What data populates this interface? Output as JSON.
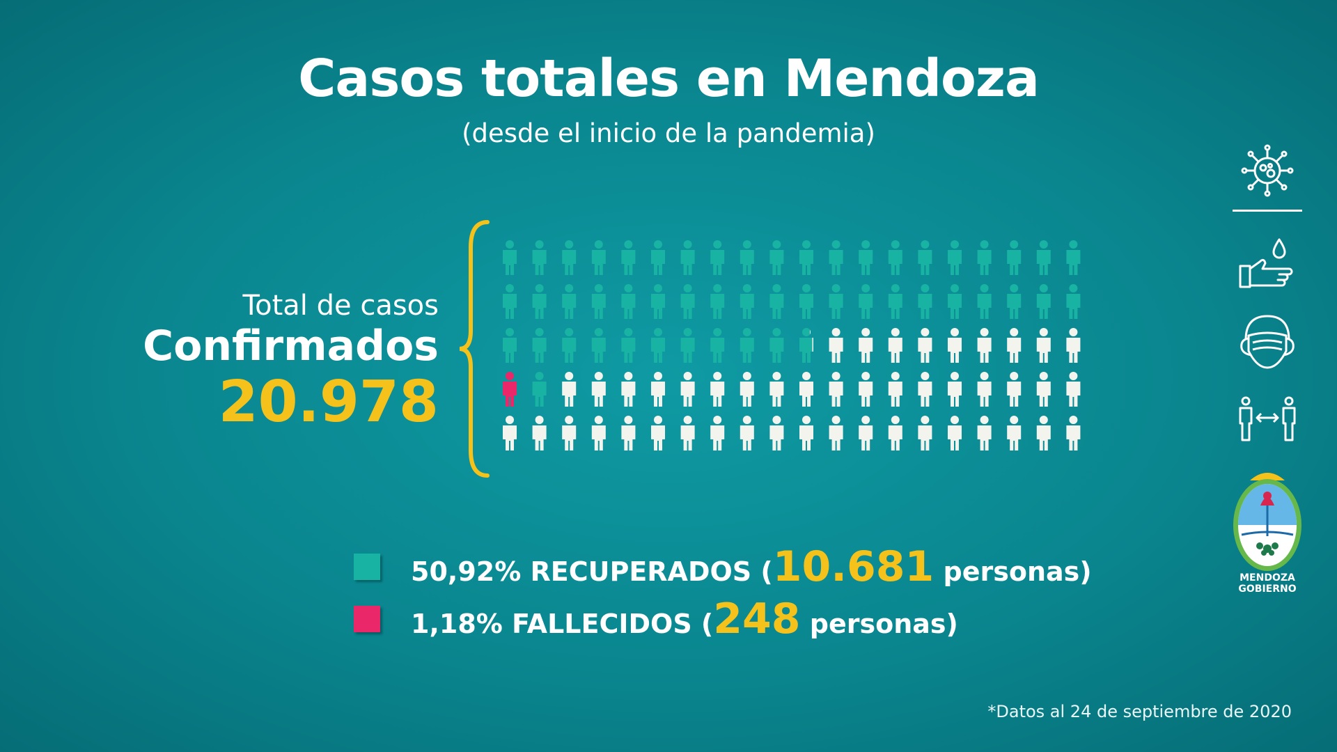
{
  "title": "Casos totales en Mendoza",
  "subtitle": "(desde el inicio de la pandemia)",
  "total": {
    "label": "Total de casos",
    "label_strong": "Confirmados",
    "value": "20.978"
  },
  "legend": [
    {
      "percent": "50,92% RECUPERADOS (",
      "count": "10.681",
      "unit": " personas)",
      "color": "#18b3a2"
    },
    {
      "percent": "1,18% FALLECIDOS (",
      "count": "248",
      "unit": " personas)",
      "color": "#ea2769"
    }
  ],
  "footnote": "*Datos al 24 de septiembre de 2020",
  "logo": {
    "line1": "MENDOZA",
    "line2": "GOBIERNO"
  },
  "icons": [
    "virus-icon",
    "handwash-icon",
    "face-mask-icon",
    "social-distance-icon",
    "mendoza-shield-icon"
  ],
  "colors": {
    "recovered": "#18b3a2",
    "deceased": "#ea2769",
    "other": "#f4f4ee",
    "accent": "#f5c21b",
    "background": "#0a868f"
  },
  "chart_data": {
    "type": "pictogram",
    "total_cases": 20978,
    "grid": {
      "rows": 5,
      "columns": 20,
      "total_icons": 100
    },
    "series": [
      {
        "name": "RECUPERADOS",
        "percent": 50.92,
        "count": 10681,
        "color": "#18b3a2"
      },
      {
        "name": "FALLECIDOS",
        "percent": 1.18,
        "count": 248,
        "color": "#ea2769"
      }
    ],
    "remainder_color": "#f4f4ee"
  }
}
